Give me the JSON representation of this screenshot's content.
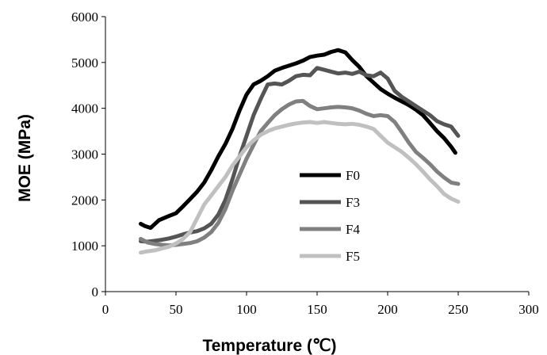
{
  "chart_data": {
    "type": "line",
    "xlabel": "Temperature (℃)",
    "ylabel": "MOE (MPa)",
    "xlim": [
      0,
      300
    ],
    "ylim": [
      0,
      6000
    ],
    "x_ticks": [
      0,
      50,
      100,
      150,
      200,
      250,
      300
    ],
    "y_ticks": [
      0,
      1000,
      2000,
      3000,
      4000,
      5000,
      6000
    ],
    "grid": false,
    "legend_position": "center",
    "series": [
      {
        "name": "F0",
        "color": "#000000",
        "points": [
          [
            25,
            1480
          ],
          [
            28,
            1430
          ],
          [
            32,
            1390
          ],
          [
            38,
            1560
          ],
          [
            45,
            1650
          ],
          [
            50,
            1710
          ],
          [
            55,
            1860
          ],
          [
            60,
            2020
          ],
          [
            65,
            2180
          ],
          [
            70,
            2380
          ],
          [
            75,
            2650
          ],
          [
            80,
            2950
          ],
          [
            85,
            3220
          ],
          [
            90,
            3550
          ],
          [
            95,
            3950
          ],
          [
            100,
            4300
          ],
          [
            105,
            4520
          ],
          [
            110,
            4600
          ],
          [
            115,
            4700
          ],
          [
            120,
            4820
          ],
          [
            125,
            4880
          ],
          [
            130,
            4930
          ],
          [
            135,
            4980
          ],
          [
            140,
            5040
          ],
          [
            145,
            5120
          ],
          [
            150,
            5150
          ],
          [
            155,
            5170
          ],
          [
            160,
            5230
          ],
          [
            165,
            5270
          ],
          [
            170,
            5220
          ],
          [
            175,
            5050
          ],
          [
            180,
            4900
          ],
          [
            185,
            4700
          ],
          [
            190,
            4560
          ],
          [
            195,
            4420
          ],
          [
            200,
            4320
          ],
          [
            205,
            4230
          ],
          [
            210,
            4150
          ],
          [
            215,
            4070
          ],
          [
            220,
            3970
          ],
          [
            225,
            3850
          ],
          [
            230,
            3680
          ],
          [
            235,
            3500
          ],
          [
            240,
            3350
          ],
          [
            245,
            3160
          ],
          [
            248,
            3030
          ]
        ]
      },
      {
        "name": "F3",
        "color": "#555555",
        "points": [
          [
            25,
            1100
          ],
          [
            30,
            1090
          ],
          [
            35,
            1110
          ],
          [
            40,
            1130
          ],
          [
            45,
            1160
          ],
          [
            50,
            1200
          ],
          [
            55,
            1250
          ],
          [
            60,
            1290
          ],
          [
            65,
            1320
          ],
          [
            70,
            1380
          ],
          [
            75,
            1480
          ],
          [
            80,
            1680
          ],
          [
            85,
            2000
          ],
          [
            90,
            2450
          ],
          [
            95,
            2950
          ],
          [
            100,
            3400
          ],
          [
            105,
            3850
          ],
          [
            110,
            4200
          ],
          [
            115,
            4520
          ],
          [
            120,
            4540
          ],
          [
            125,
            4520
          ],
          [
            130,
            4600
          ],
          [
            135,
            4700
          ],
          [
            140,
            4730
          ],
          [
            145,
            4720
          ],
          [
            150,
            4880
          ],
          [
            155,
            4840
          ],
          [
            160,
            4800
          ],
          [
            165,
            4760
          ],
          [
            170,
            4780
          ],
          [
            175,
            4750
          ],
          [
            180,
            4800
          ],
          [
            185,
            4720
          ],
          [
            190,
            4700
          ],
          [
            195,
            4780
          ],
          [
            200,
            4650
          ],
          [
            205,
            4380
          ],
          [
            210,
            4250
          ],
          [
            215,
            4150
          ],
          [
            220,
            4050
          ],
          [
            225,
            3950
          ],
          [
            230,
            3850
          ],
          [
            235,
            3720
          ],
          [
            240,
            3650
          ],
          [
            245,
            3600
          ],
          [
            250,
            3400
          ]
        ]
      },
      {
        "name": "F4",
        "color": "#808080",
        "points": [
          [
            25,
            1150
          ],
          [
            30,
            1070
          ],
          [
            35,
            1040
          ],
          [
            40,
            1020
          ],
          [
            45,
            1010
          ],
          [
            50,
            1020
          ],
          [
            55,
            1040
          ],
          [
            60,
            1060
          ],
          [
            65,
            1100
          ],
          [
            70,
            1180
          ],
          [
            75,
            1300
          ],
          [
            80,
            1500
          ],
          [
            85,
            1800
          ],
          [
            90,
            2200
          ],
          [
            95,
            2550
          ],
          [
            100,
            2900
          ],
          [
            105,
            3200
          ],
          [
            110,
            3500
          ],
          [
            115,
            3680
          ],
          [
            120,
            3850
          ],
          [
            125,
            3980
          ],
          [
            130,
            4080
          ],
          [
            135,
            4150
          ],
          [
            140,
            4160
          ],
          [
            145,
            4050
          ],
          [
            150,
            3980
          ],
          [
            155,
            4000
          ],
          [
            160,
            4020
          ],
          [
            165,
            4030
          ],
          [
            170,
            4020
          ],
          [
            175,
            4000
          ],
          [
            180,
            3950
          ],
          [
            185,
            3880
          ],
          [
            190,
            3830
          ],
          [
            195,
            3850
          ],
          [
            200,
            3830
          ],
          [
            205,
            3700
          ],
          [
            210,
            3480
          ],
          [
            215,
            3250
          ],
          [
            220,
            3050
          ],
          [
            225,
            2920
          ],
          [
            230,
            2780
          ],
          [
            235,
            2620
          ],
          [
            240,
            2490
          ],
          [
            245,
            2380
          ],
          [
            250,
            2350
          ]
        ]
      },
      {
        "name": "F5",
        "color": "#c0c0c0",
        "points": [
          [
            25,
            850
          ],
          [
            30,
            880
          ],
          [
            35,
            900
          ],
          [
            40,
            940
          ],
          [
            45,
            980
          ],
          [
            50,
            1050
          ],
          [
            55,
            1150
          ],
          [
            60,
            1300
          ],
          [
            65,
            1600
          ],
          [
            70,
            1900
          ],
          [
            75,
            2100
          ],
          [
            80,
            2300
          ],
          [
            85,
            2500
          ],
          [
            90,
            2750
          ],
          [
            95,
            2950
          ],
          [
            100,
            3150
          ],
          [
            105,
            3300
          ],
          [
            110,
            3420
          ],
          [
            115,
            3500
          ],
          [
            120,
            3560
          ],
          [
            125,
            3600
          ],
          [
            130,
            3640
          ],
          [
            135,
            3670
          ],
          [
            140,
            3690
          ],
          [
            145,
            3700
          ],
          [
            150,
            3680
          ],
          [
            155,
            3700
          ],
          [
            160,
            3680
          ],
          [
            165,
            3660
          ],
          [
            170,
            3650
          ],
          [
            175,
            3660
          ],
          [
            180,
            3640
          ],
          [
            185,
            3600
          ],
          [
            190,
            3550
          ],
          [
            195,
            3400
          ],
          [
            200,
            3250
          ],
          [
            205,
            3150
          ],
          [
            210,
            3050
          ],
          [
            215,
            2920
          ],
          [
            220,
            2780
          ],
          [
            225,
            2620
          ],
          [
            230,
            2450
          ],
          [
            235,
            2300
          ],
          [
            240,
            2130
          ],
          [
            245,
            2030
          ],
          [
            250,
            1960
          ]
        ]
      }
    ]
  }
}
